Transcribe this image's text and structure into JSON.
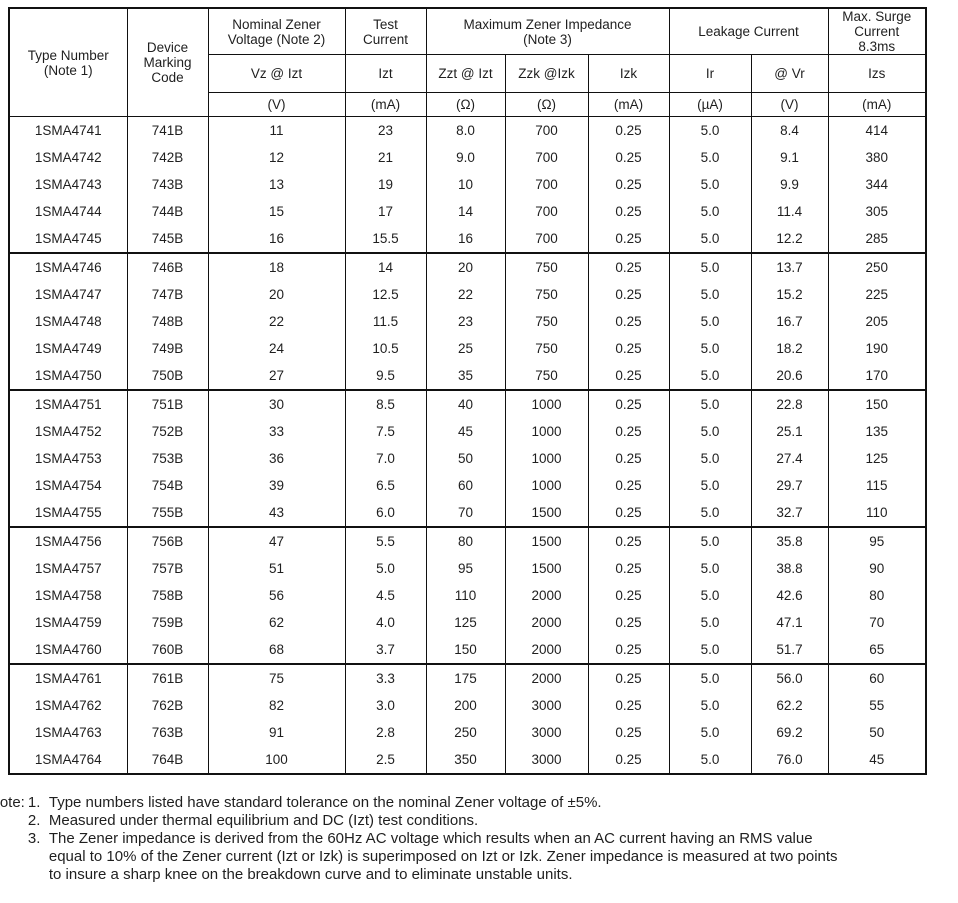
{
  "table": {
    "header": {
      "type_number": "Type Number\n(Note 1)",
      "device_marking": "Device\nMarking\nCode",
      "nominal_zener": "Nominal Zener\nVoltage (Note 2)",
      "test_current": "Test\nCurrent",
      "max_impedance": "Maximum Zener Impedance\n(Note 3)",
      "leakage": "Leakage Current",
      "max_surge": "Max. Surge\nCurrent\n8.3ms",
      "symbols": [
        "Vz @ Izt",
        "Izt",
        "Zzt @ Izt",
        "Zzk @Izk",
        "Izk",
        "Ir",
        "@ Vr",
        "Izs"
      ],
      "units": [
        "(V)",
        "(mA)",
        "(Ω)",
        "(Ω)",
        "(mA)",
        "(µA)",
        "(V)",
        "(mA)"
      ]
    },
    "column_keys": [
      "type-number",
      "device-marking-code",
      "vz",
      "izt",
      "zzt",
      "zzk",
      "izk",
      "ir",
      "vr",
      "izs"
    ],
    "group_start_indexes": [
      5,
      10,
      15,
      20
    ],
    "rows": [
      [
        "1SMA4741",
        "741B",
        "11",
        "23",
        "8.0",
        "700",
        "0.25",
        "5.0",
        "8.4",
        "414"
      ],
      [
        "1SMA4742",
        "742B",
        "12",
        "21",
        "9.0",
        "700",
        "0.25",
        "5.0",
        "9.1",
        "380"
      ],
      [
        "1SMA4743",
        "743B",
        "13",
        "19",
        "10",
        "700",
        "0.25",
        "5.0",
        "9.9",
        "344"
      ],
      [
        "1SMA4744",
        "744B",
        "15",
        "17",
        "14",
        "700",
        "0.25",
        "5.0",
        "11.4",
        "305"
      ],
      [
        "1SMA4745",
        "745B",
        "16",
        "15.5",
        "16",
        "700",
        "0.25",
        "5.0",
        "12.2",
        "285"
      ],
      [
        "1SMA4746",
        "746B",
        "18",
        "14",
        "20",
        "750",
        "0.25",
        "5.0",
        "13.7",
        "250"
      ],
      [
        "1SMA4747",
        "747B",
        "20",
        "12.5",
        "22",
        "750",
        "0.25",
        "5.0",
        "15.2",
        "225"
      ],
      [
        "1SMA4748",
        "748B",
        "22",
        "11.5",
        "23",
        "750",
        "0.25",
        "5.0",
        "16.7",
        "205"
      ],
      [
        "1SMA4749",
        "749B",
        "24",
        "10.5",
        "25",
        "750",
        "0.25",
        "5.0",
        "18.2",
        "190"
      ],
      [
        "1SMA4750",
        "750B",
        "27",
        "9.5",
        "35",
        "750",
        "0.25",
        "5.0",
        "20.6",
        "170"
      ],
      [
        "1SMA4751",
        "751B",
        "30",
        "8.5",
        "40",
        "1000",
        "0.25",
        "5.0",
        "22.8",
        "150"
      ],
      [
        "1SMA4752",
        "752B",
        "33",
        "7.5",
        "45",
        "1000",
        "0.25",
        "5.0",
        "25.1",
        "135"
      ],
      [
        "1SMA4753",
        "753B",
        "36",
        "7.0",
        "50",
        "1000",
        "0.25",
        "5.0",
        "27.4",
        "125"
      ],
      [
        "1SMA4754",
        "754B",
        "39",
        "6.5",
        "60",
        "1000",
        "0.25",
        "5.0",
        "29.7",
        "115"
      ],
      [
        "1SMA4755",
        "755B",
        "43",
        "6.0",
        "70",
        "1500",
        "0.25",
        "5.0",
        "32.7",
        "110"
      ],
      [
        "1SMA4756",
        "756B",
        "47",
        "5.5",
        "80",
        "1500",
        "0.25",
        "5.0",
        "35.8",
        "95"
      ],
      [
        "1SMA4757",
        "757B",
        "51",
        "5.0",
        "95",
        "1500",
        "0.25",
        "5.0",
        "38.8",
        "90"
      ],
      [
        "1SMA4758",
        "758B",
        "56",
        "4.5",
        "110",
        "2000",
        "0.25",
        "5.0",
        "42.6",
        "80"
      ],
      [
        "1SMA4759",
        "759B",
        "62",
        "4.0",
        "125",
        "2000",
        "0.25",
        "5.0",
        "47.1",
        "70"
      ],
      [
        "1SMA4760",
        "760B",
        "68",
        "3.7",
        "150",
        "2000",
        "0.25",
        "5.0",
        "51.7",
        "65"
      ],
      [
        "1SMA4761",
        "761B",
        "75",
        "3.3",
        "175",
        "2000",
        "0.25",
        "5.0",
        "56.0",
        "60"
      ],
      [
        "1SMA4762",
        "762B",
        "82",
        "3.0",
        "200",
        "3000",
        "0.25",
        "5.0",
        "62.2",
        "55"
      ],
      [
        "1SMA4763",
        "763B",
        "91",
        "2.8",
        "250",
        "3000",
        "0.25",
        "5.0",
        "69.2",
        "50"
      ],
      [
        "1SMA4764",
        "764B",
        "100",
        "2.5",
        "350",
        "3000",
        "0.25",
        "5.0",
        "76.0",
        "45"
      ]
    ]
  },
  "notes": {
    "label": "Note:",
    "items": [
      "Type numbers listed have standard tolerance on the nominal Zener voltage of ±5%.",
      "Measured under thermal equilibrium and DC (Izt) test conditions.",
      "The Zener impedance is derived from the 60Hz AC voltage which results when an AC current having an RMS value\nequal to 10% of the Zener current (Izt or Izk) is superimposed on Izt or Izk. Zener impedance is measured at two points\nto insure a sharp knee on the breakdown curve and to eliminate unstable units."
    ]
  }
}
